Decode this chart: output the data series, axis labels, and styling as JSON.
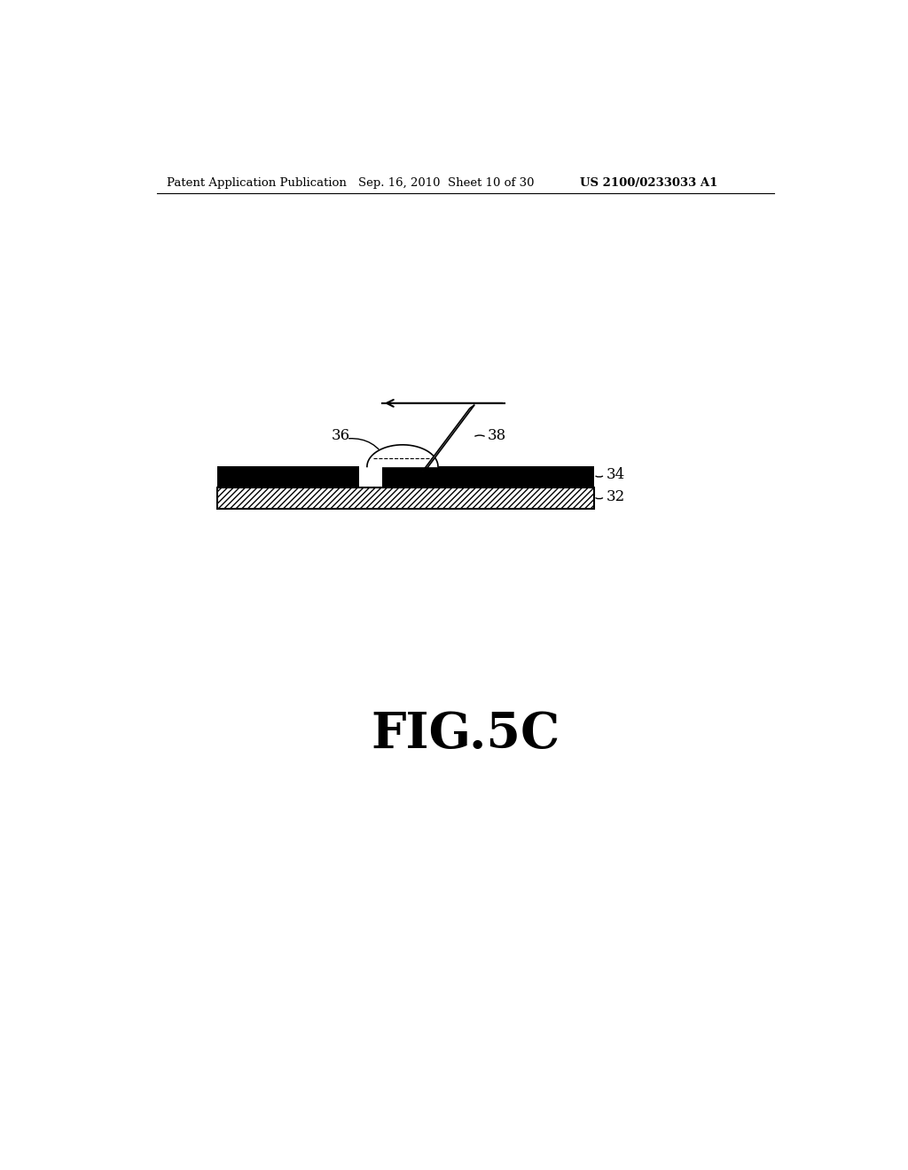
{
  "title_left": "Patent Application Publication",
  "title_mid": "Sep. 16, 2010  Sheet 10 of 30",
  "title_right": "US 2100/0233033 A1",
  "fig_label": "FIG.5C",
  "bg_color": "#ffffff",
  "label_34": "34",
  "label_32": "32",
  "label_36": "36",
  "label_38": "38",
  "header_fontsize": 9.5,
  "fig_label_fontsize": 40
}
